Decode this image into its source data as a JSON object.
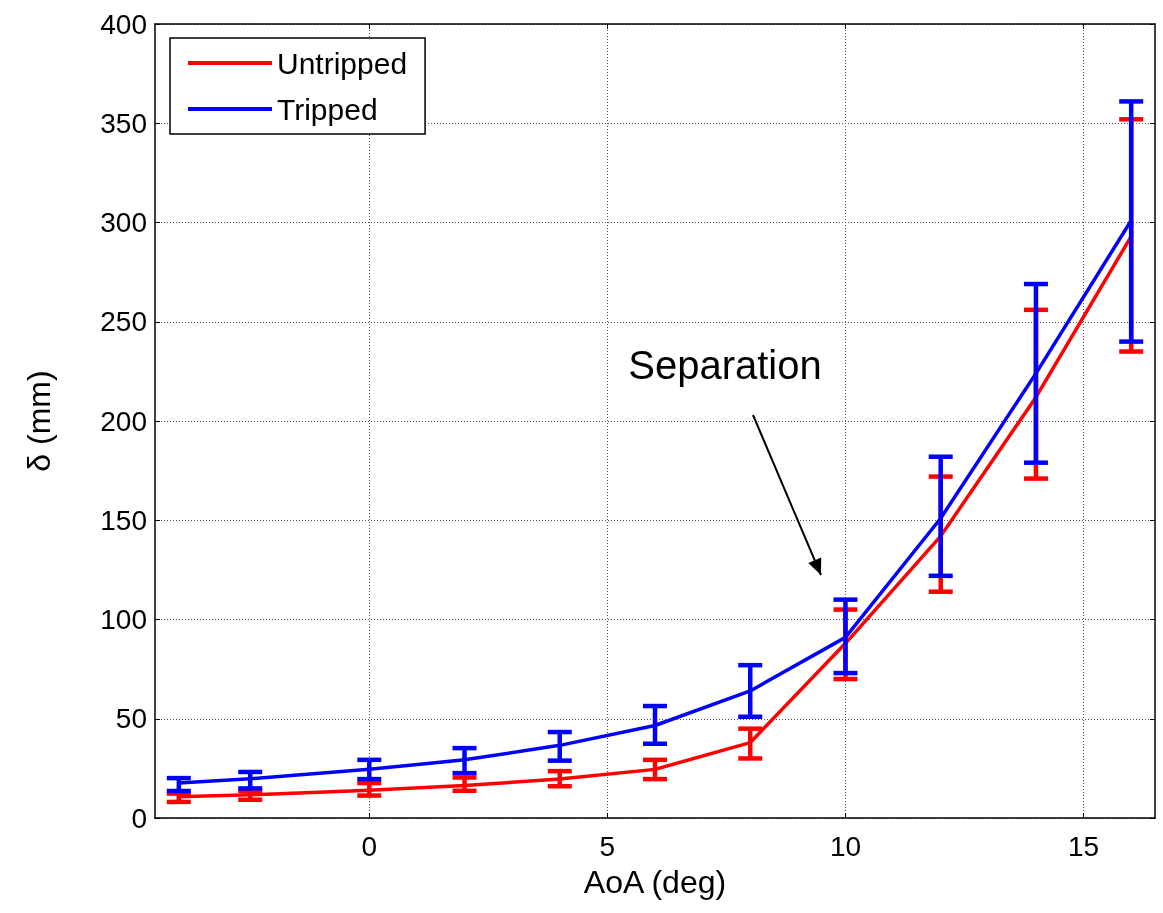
{
  "chart_data": {
    "type": "line",
    "xlabel": "AoA (deg)",
    "ylabel": "δ (mm)",
    "x": [
      -4,
      -2.5,
      0,
      2,
      4,
      6,
      8,
      10,
      12,
      14,
      16
    ],
    "series": [
      {
        "name": "Untripped",
        "color": "#ff0000",
        "values": [
          10.7,
          11.7,
          14,
          16.4,
          19.6,
          24.5,
          38,
          88,
          142,
          212,
          293
        ],
        "errors": [
          [
            8.1,
            12.3
          ],
          [
            9.2,
            13.7
          ],
          [
            11.3,
            17.6
          ],
          [
            13.7,
            20.4
          ],
          [
            16,
            23.6
          ],
          [
            19.6,
            29.3
          ],
          [
            30,
            45
          ],
          [
            70,
            105
          ],
          [
            114,
            172
          ],
          [
            171,
            256
          ],
          [
            235,
            352
          ]
        ]
      },
      {
        "name": "Tripped",
        "color": "#0000ff",
        "values": [
          17.6,
          19.8,
          24.5,
          29.3,
          36.6,
          46.6,
          64,
          91,
          151,
          224,
          301
        ],
        "errors": [
          [
            13.6,
            20.1
          ],
          [
            14.9,
            23.2
          ],
          [
            19.6,
            29.3
          ],
          [
            22.6,
            35.2
          ],
          [
            28.9,
            43.3
          ],
          [
            37.4,
            56.4
          ],
          [
            51,
            77
          ],
          [
            73,
            110
          ],
          [
            122,
            182
          ],
          [
            179,
            269
          ],
          [
            240,
            361
          ]
        ]
      }
    ],
    "xlim": [
      -4.5,
      16.5
    ],
    "xticks": [
      0,
      5,
      10,
      15
    ],
    "ylim": [
      0,
      400
    ],
    "yticks": [
      0,
      50,
      100,
      150,
      200,
      250,
      300,
      350,
      400
    ],
    "grid": true,
    "legend": "top left",
    "marker": "none",
    "line_style": "solid",
    "annotations": [
      "Separation"
    ]
  }
}
